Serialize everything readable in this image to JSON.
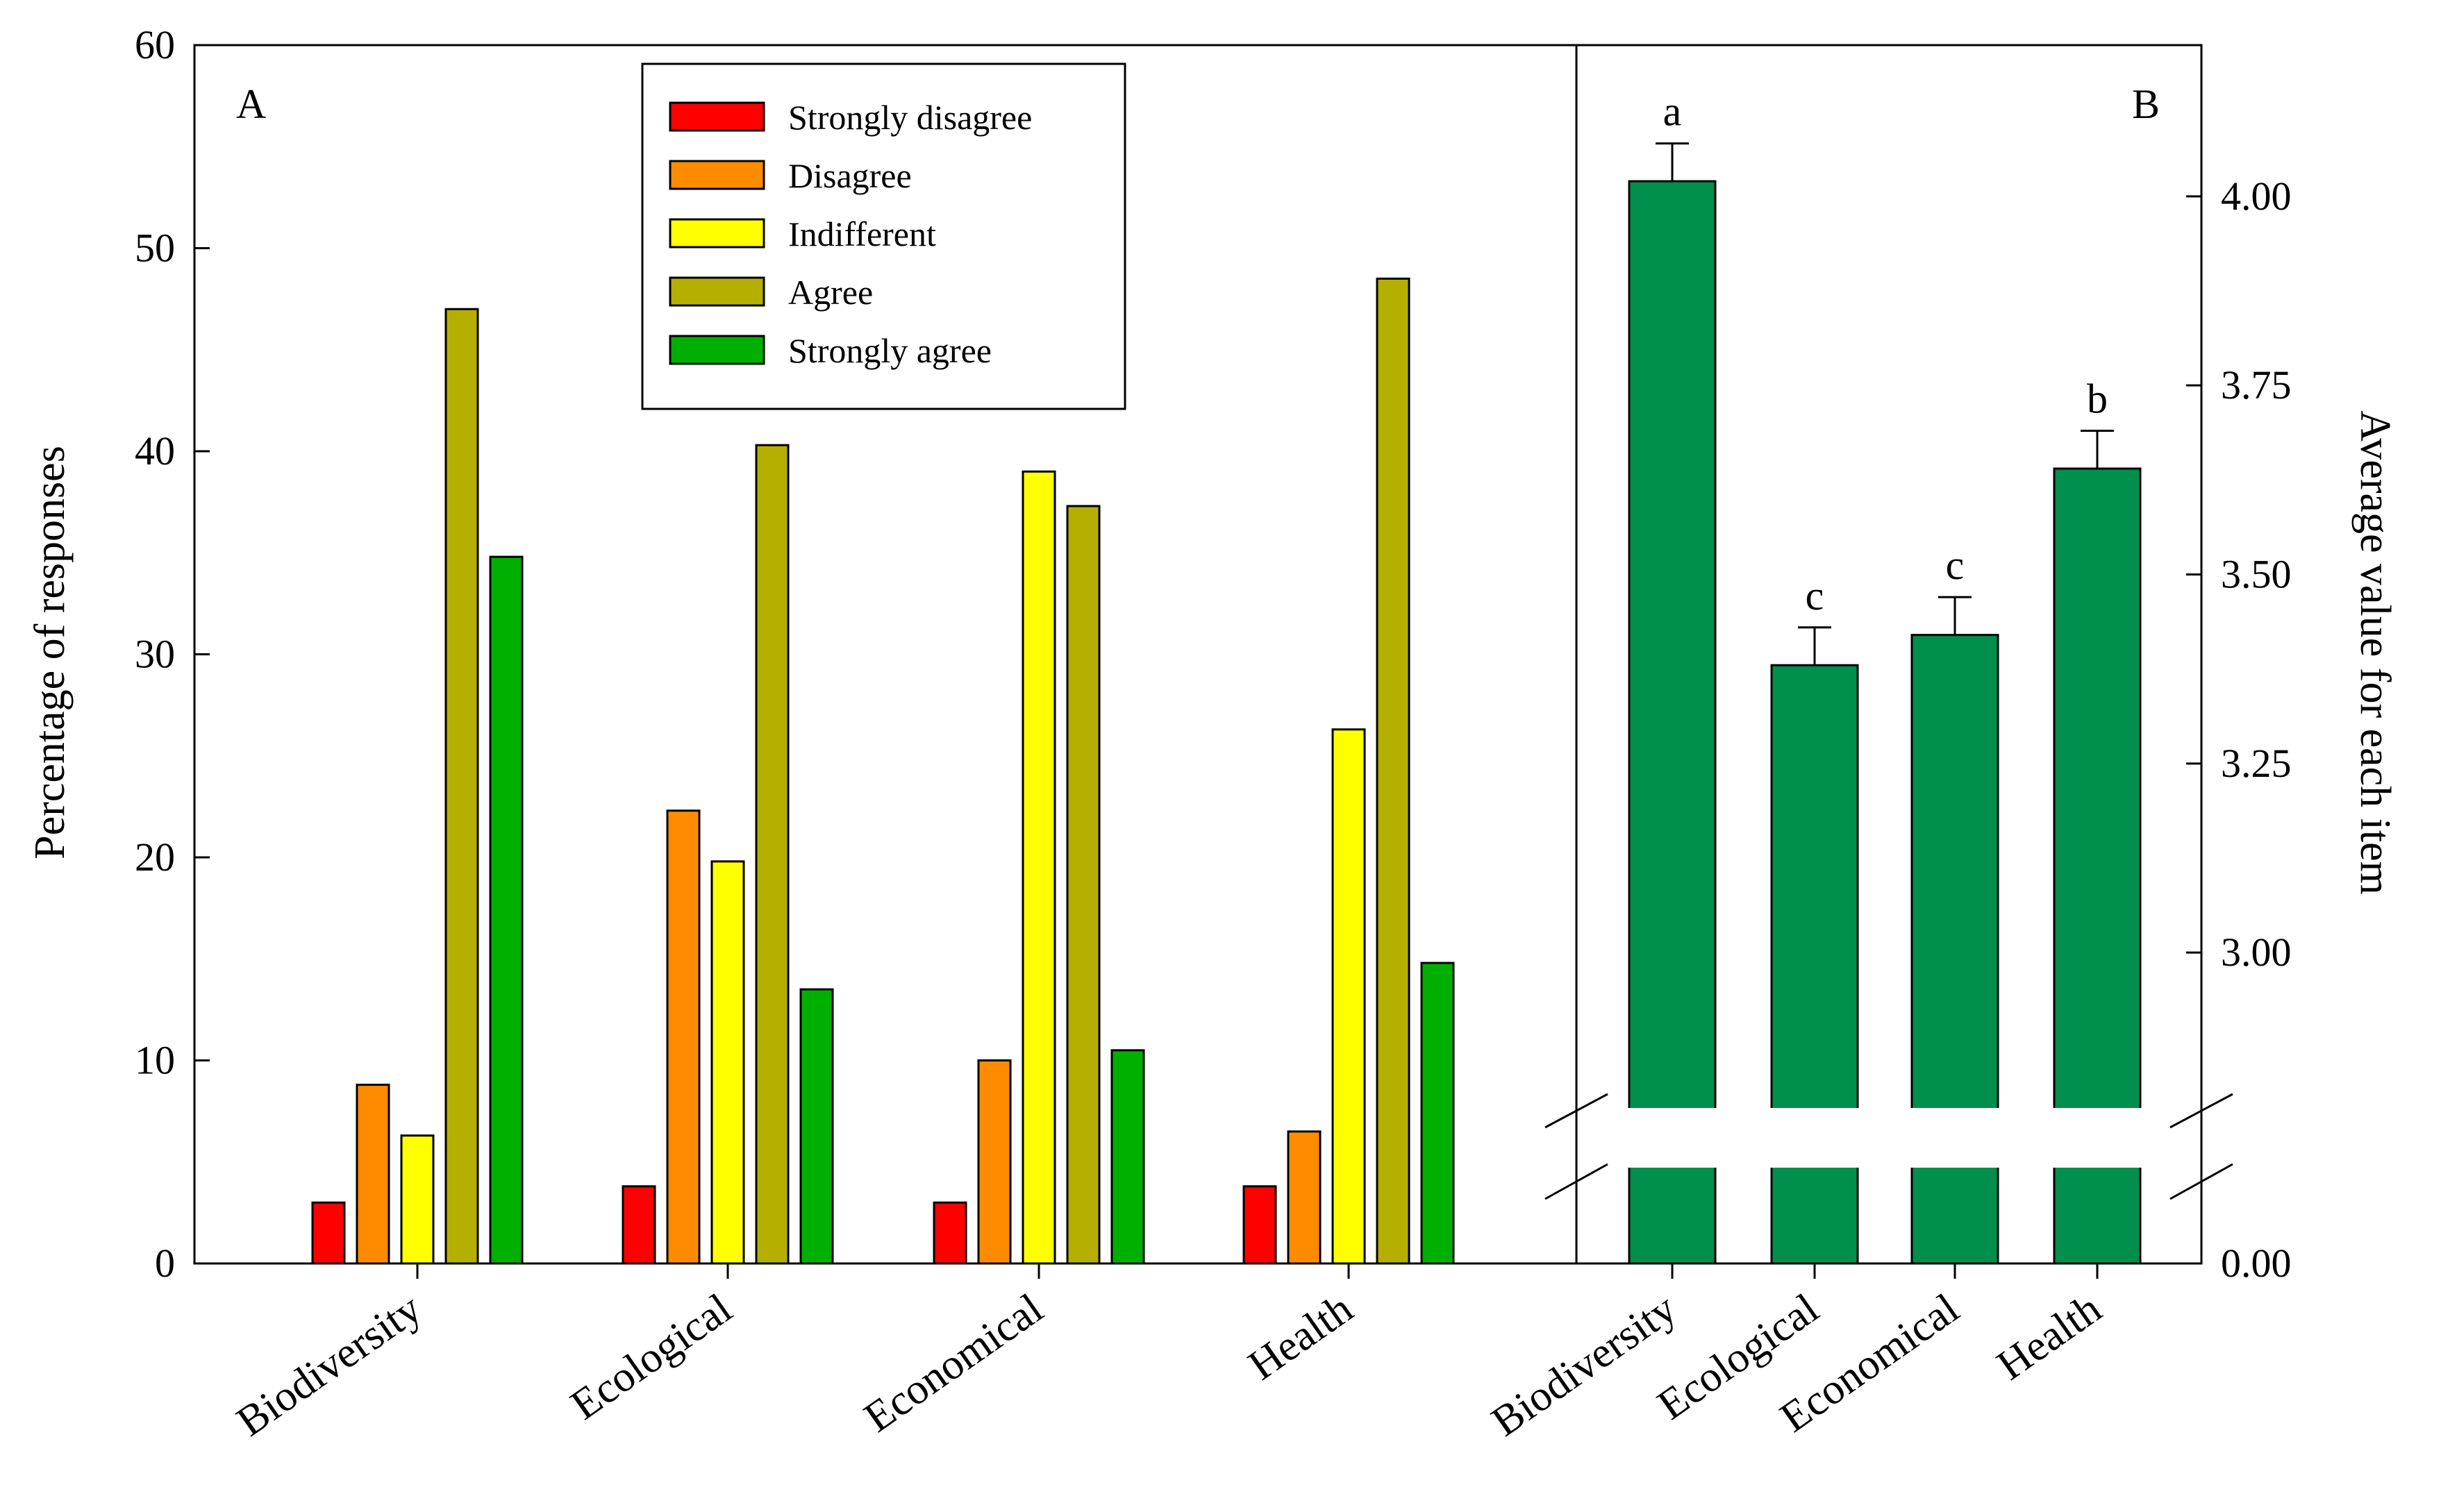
{
  "chart_data": [
    {
      "panel": "A",
      "type": "bar",
      "ylabel": "Percentage of responses",
      "ylim": [
        0,
        60
      ],
      "yticks": [
        "0",
        "10",
        "20",
        "30",
        "40",
        "50",
        "60"
      ],
      "categories": [
        "Biodiversity",
        "Ecological",
        "Economical",
        "Health"
      ],
      "legend_position": "top-center",
      "series": [
        {
          "name": "Strongly disagree",
          "color": "#ff0000",
          "values": [
            3.0,
            3.8,
            3.0,
            3.8
          ]
        },
        {
          "name": "Disagree",
          "color": "#ff8c00",
          "values": [
            8.8,
            22.3,
            10.0,
            6.5
          ]
        },
        {
          "name": "Indifferent",
          "color": "#ffff00",
          "values": [
            6.3,
            19.8,
            39.0,
            26.3
          ]
        },
        {
          "name": "Agree",
          "color": "#b5b000",
          "values": [
            47.0,
            40.3,
            37.3,
            48.5
          ]
        },
        {
          "name": "Strongly agree",
          "color": "#00b000",
          "values": [
            34.8,
            13.5,
            10.5,
            14.8
          ]
        }
      ]
    },
    {
      "panel": "B",
      "type": "bar",
      "ylabel": "Average value for each item",
      "ylim_upper": [
        2.8,
        4.2
      ],
      "axis_break": true,
      "yticks": [
        "0.00",
        "3.00",
        "3.25",
        "3.50",
        "3.75",
        "4.00"
      ],
      "yticks_values": [
        0,
        3.0,
        3.25,
        3.5,
        3.75,
        4.0
      ],
      "categories": [
        "Biodiversity",
        "Ecological",
        "Economical",
        "Health"
      ],
      "bar_color": "#008f4c",
      "values": [
        4.02,
        3.38,
        3.42,
        3.64
      ],
      "errors": [
        0.05,
        0.05,
        0.05,
        0.05
      ],
      "significance_letters": [
        "a",
        "c",
        "c",
        "b"
      ]
    }
  ]
}
